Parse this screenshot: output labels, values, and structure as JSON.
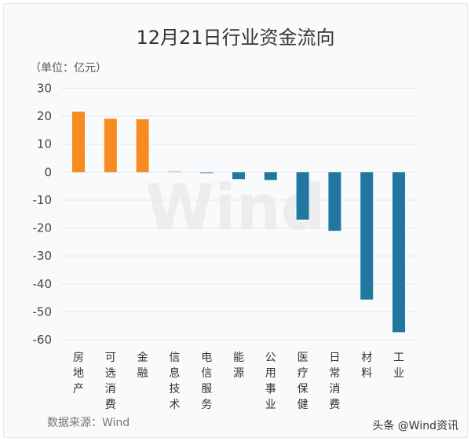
{
  "chart_data": {
    "type": "bar",
    "title": "12月21日行业资金流向",
    "ylabel": "（单位：亿元）",
    "source": "数据来源：Wind",
    "watermark": "Wind",
    "credit": "头条 @Wind资讯",
    "categories": [
      "房地产",
      "可选消费",
      "金融",
      "信息技术",
      "电信服务",
      "能源",
      "公用事业",
      "医疗保健",
      "日常消费",
      "材料",
      "工业"
    ],
    "values": [
      21.6,
      19.1,
      18.9,
      0.4,
      -0.4,
      -2.5,
      -2.8,
      -17.0,
      -21.0,
      -45.6,
      -57.3
    ],
    "ylim": [
      -60,
      30
    ],
    "yticks": [
      30,
      20,
      10,
      0,
      -10,
      -20,
      -30,
      -40,
      -50,
      -60
    ],
    "grid": true,
    "colors": {
      "positive": "#f68b1f",
      "negative": "#22779f",
      "small_positive": "#f9c99a",
      "small_negative": "#6aa6c6"
    }
  }
}
